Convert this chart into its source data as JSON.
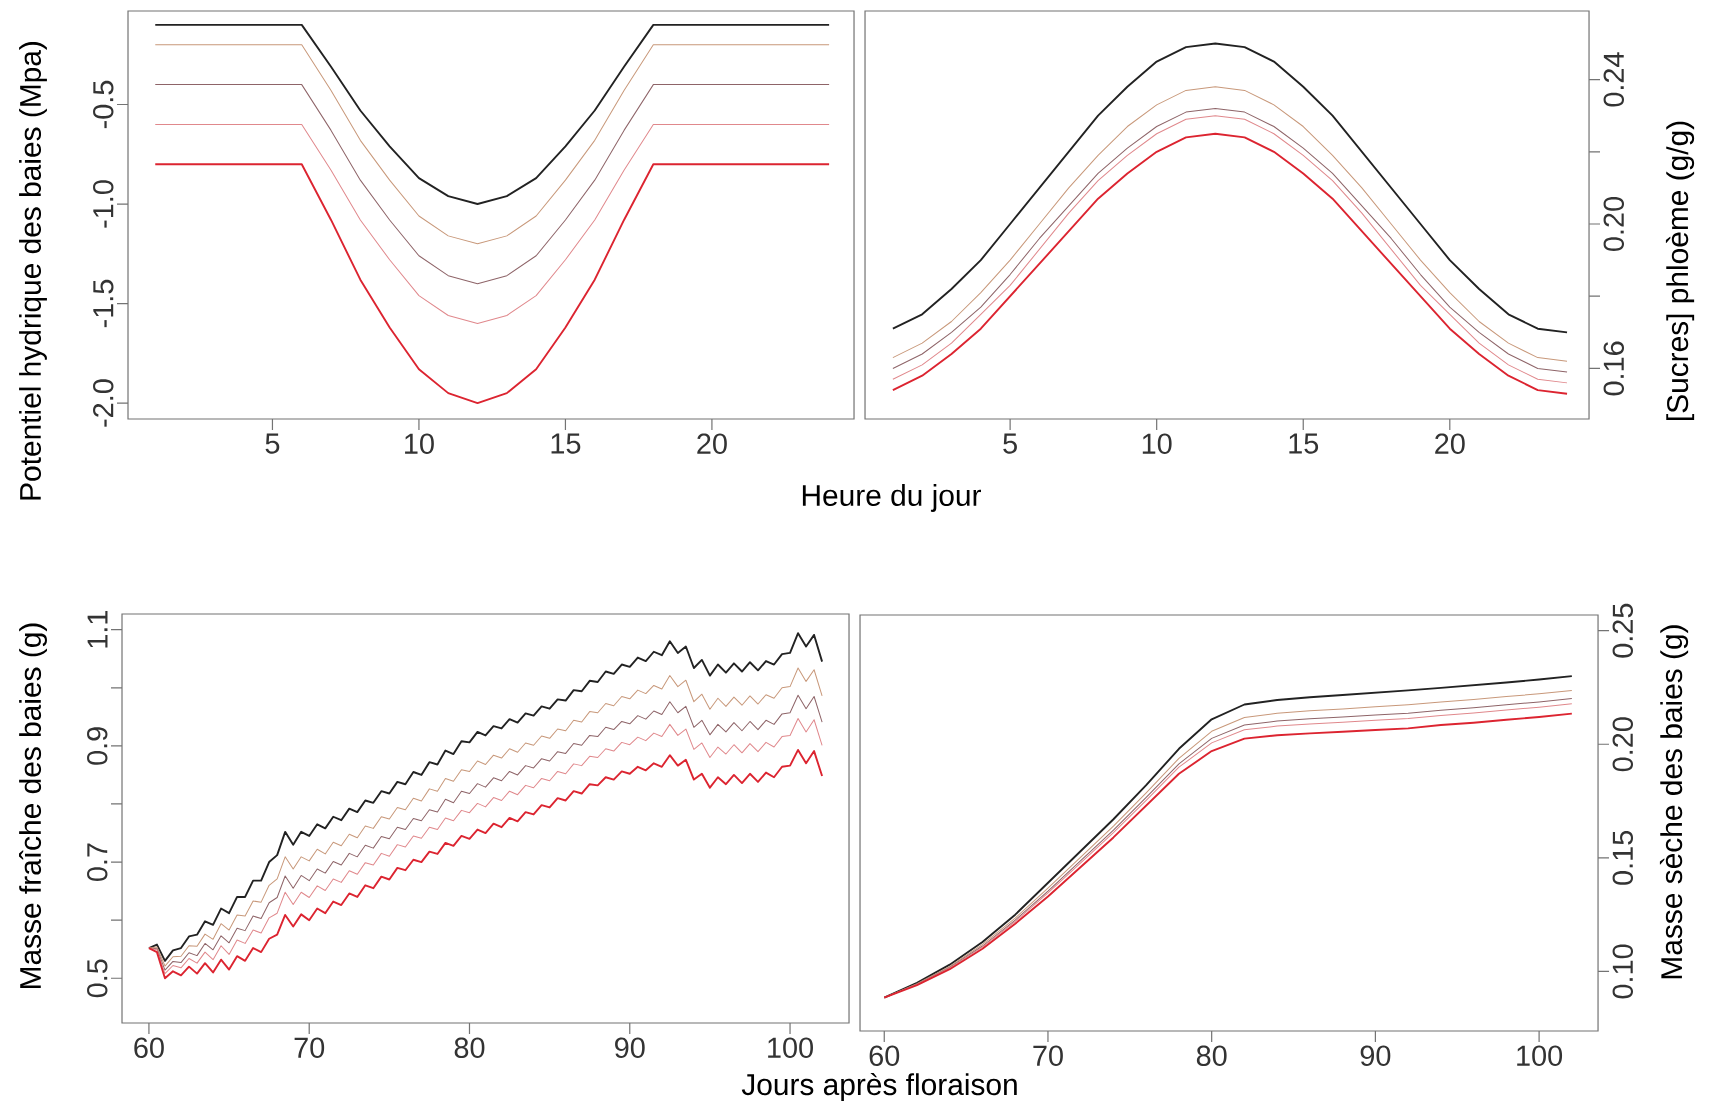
{
  "chart_data": [
    {
      "type": "line",
      "xlabel": "Heure du jour",
      "ylabel": "Potentiel hydrique des baies (Mpa)",
      "x": [
        1,
        2,
        3,
        4,
        5,
        6,
        7,
        8,
        9,
        10,
        11,
        12,
        13,
        14,
        15,
        16,
        17,
        18,
        19,
        20,
        21,
        22,
        23,
        24
      ],
      "xlim": [
        0.07,
        24.85
      ],
      "ylim": [
        -2.08,
        -0.03
      ],
      "xticks": [
        5,
        10,
        15,
        20
      ],
      "yticks": [
        {
          "value": -2,
          "label": "-2.0"
        },
        -1.5,
        {
          "value": -1,
          "label": "-1.0"
        },
        -0.5
      ],
      "series": [
        {
          "color": "#222222",
          "values": [
            -0.1,
            -0.1,
            -0.1,
            -0.1,
            -0.1,
            -0.1,
            -0.31,
            -0.53,
            -0.71,
            -0.87,
            -0.96,
            -1.0,
            -0.96,
            -0.87,
            -0.71,
            -0.53,
            -0.31,
            -0.1,
            -0.1,
            -0.1,
            -0.1,
            -0.1,
            -0.1,
            -0.1
          ]
        },
        {
          "color": "#c8987a",
          "values": [
            -0.2,
            -0.2,
            -0.2,
            -0.2,
            -0.2,
            -0.2,
            -0.43,
            -0.68,
            -0.88,
            -1.06,
            -1.16,
            -1.2,
            -1.16,
            -1.06,
            -0.88,
            -0.68,
            -0.43,
            -0.2,
            -0.2,
            -0.2,
            -0.2,
            -0.2,
            -0.2,
            -0.2
          ]
        },
        {
          "color": "#8e6468",
          "values": [
            -0.4,
            -0.4,
            -0.4,
            -0.4,
            -0.4,
            -0.4,
            -0.63,
            -0.88,
            -1.08,
            -1.26,
            -1.36,
            -1.4,
            -1.36,
            -1.26,
            -1.08,
            -0.88,
            -0.63,
            -0.4,
            -0.4,
            -0.4,
            -0.4,
            -0.4,
            -0.4,
            -0.4
          ]
        },
        {
          "color": "#e0888c",
          "values": [
            -0.6,
            -0.6,
            -0.6,
            -0.6,
            -0.6,
            -0.6,
            -0.83,
            -1.08,
            -1.28,
            -1.46,
            -1.56,
            -1.6,
            -1.56,
            -1.46,
            -1.28,
            -1.08,
            -0.83,
            -0.6,
            -0.6,
            -0.6,
            -0.6,
            -0.6,
            -0.6,
            -0.6
          ]
        },
        {
          "color": "#dc2430",
          "values": [
            -0.8,
            -0.8,
            -0.8,
            -0.8,
            -0.8,
            -0.8,
            -1.08,
            -1.38,
            -1.62,
            -1.83,
            -1.95,
            -2.0,
            -1.95,
            -1.83,
            -1.62,
            -1.38,
            -1.08,
            -0.8,
            -0.8,
            -0.8,
            -0.8,
            -0.8,
            -0.8,
            -0.8
          ]
        }
      ]
    },
    {
      "type": "line",
      "ylabel": "[Sucres] phloème (g/g)",
      "x": [
        1,
        2,
        3,
        4,
        5,
        6,
        7,
        8,
        9,
        10,
        11,
        12,
        13,
        14,
        15,
        16,
        17,
        18,
        19,
        20,
        21,
        22,
        23,
        24
      ],
      "xlim": [
        0.05,
        24.75
      ],
      "ylim": [
        0.146,
        0.259
      ],
      "xticks": [
        5,
        10,
        15,
        20
      ],
      "yticks": [
        0.16,
        {
          "value": 0.18,
          "label": null
        },
        {
          "value": 0.2,
          "label": "0.20"
        },
        {
          "value": 0.22,
          "label": null
        },
        0.24
      ],
      "series": [
        {
          "color": "#222222",
          "values": [
            0.171,
            0.175,
            0.182,
            0.19,
            0.2,
            0.21,
            0.22,
            0.23,
            0.238,
            0.245,
            0.249,
            0.25,
            0.249,
            0.245,
            0.238,
            0.23,
            0.22,
            0.21,
            0.2,
            0.19,
            0.182,
            0.175,
            0.171,
            0.17
          ]
        },
        {
          "color": "#c8987a",
          "values": [
            0.163,
            0.167,
            0.173,
            0.181,
            0.19,
            0.2,
            0.21,
            0.219,
            0.227,
            0.233,
            0.237,
            0.238,
            0.237,
            0.233,
            0.227,
            0.219,
            0.21,
            0.2,
            0.19,
            0.181,
            0.173,
            0.167,
            0.163,
            0.162
          ]
        },
        {
          "color": "#8e6468",
          "values": [
            0.16,
            0.164,
            0.17,
            0.177,
            0.186,
            0.196,
            0.205,
            0.214,
            0.221,
            0.227,
            0.231,
            0.232,
            0.231,
            0.227,
            0.221,
            0.214,
            0.205,
            0.196,
            0.186,
            0.177,
            0.17,
            0.164,
            0.16,
            0.159
          ]
        },
        {
          "color": "#e0888c",
          "values": [
            0.157,
            0.161,
            0.167,
            0.175,
            0.183,
            0.193,
            0.203,
            0.212,
            0.219,
            0.225,
            0.229,
            0.23,
            0.229,
            0.225,
            0.219,
            0.212,
            0.203,
            0.193,
            0.183,
            0.175,
            0.167,
            0.161,
            0.157,
            0.156
          ]
        },
        {
          "color": "#dc2430",
          "values": [
            0.154,
            0.158,
            0.164,
            0.171,
            0.18,
            0.189,
            0.198,
            0.207,
            0.214,
            0.22,
            0.224,
            0.225,
            0.224,
            0.22,
            0.214,
            0.207,
            0.198,
            0.189,
            0.18,
            0.171,
            0.164,
            0.158,
            0.154,
            0.153
          ]
        }
      ]
    },
    {
      "type": "line",
      "xlabel": "Jours après floraison",
      "ylabel": "Masse fraîche des baies (g)",
      "x": [
        60,
        60.5,
        61,
        61.5,
        62,
        62.5,
        63,
        63.5,
        64,
        64.5,
        65,
        65.5,
        66,
        66.5,
        67,
        67.5,
        68,
        68.5,
        69,
        69.5,
        70,
        70.5,
        71,
        71.5,
        72,
        72.5,
        73,
        73.5,
        74,
        74.5,
        75,
        75.5,
        76,
        76.5,
        77,
        77.5,
        78,
        78.5,
        79,
        79.5,
        80,
        80.5,
        81,
        81.5,
        82,
        82.5,
        83,
        83.5,
        84,
        84.5,
        85,
        85.5,
        86,
        86.5,
        87,
        87.5,
        88,
        88.5,
        89,
        89.5,
        90,
        90.5,
        91,
        91.5,
        92,
        92.5,
        93,
        93.5,
        94,
        94.5,
        95,
        95.5,
        96,
        96.5,
        97,
        97.5,
        98,
        98.5,
        99,
        99.5,
        100,
        100.5,
        101,
        101.5,
        102
      ],
      "xlim": [
        58.32,
        103.68
      ],
      "ylim": [
        0.423,
        1.127
      ],
      "xticks": [
        60,
        70,
        80,
        90,
        100
      ],
      "yticks": [
        0.5,
        {
          "value": 0.6,
          "label": null
        },
        0.7,
        {
          "value": 0.8,
          "label": null
        },
        0.9,
        {
          "value": 1.0,
          "label": null
        },
        1.1
      ],
      "series": [
        {
          "color": "#222222",
          "values": [
            0.552,
            0.558,
            0.53,
            0.548,
            0.552,
            0.572,
            0.575,
            0.598,
            0.592,
            0.62,
            0.612,
            0.64,
            0.64,
            0.668,
            0.668,
            0.7,
            0.712,
            0.752,
            0.73,
            0.752,
            0.745,
            0.765,
            0.758,
            0.778,
            0.772,
            0.792,
            0.786,
            0.806,
            0.802,
            0.822,
            0.818,
            0.838,
            0.834,
            0.855,
            0.85,
            0.872,
            0.868,
            0.892,
            0.886,
            0.908,
            0.906,
            0.924,
            0.918,
            0.934,
            0.93,
            0.946,
            0.94,
            0.956,
            0.952,
            0.968,
            0.964,
            0.98,
            0.978,
            0.996,
            0.994,
            1.012,
            1.01,
            1.028,
            1.024,
            1.04,
            1.036,
            1.052,
            1.046,
            1.062,
            1.056,
            1.08,
            1.06,
            1.071,
            1.034,
            1.048,
            1.021,
            1.04,
            1.026,
            1.042,
            1.028,
            1.044,
            1.03,
            1.046,
            1.04,
            1.058,
            1.06,
            1.094,
            1.071,
            1.091,
            1.045
          ]
        },
        {
          "color": "#c8987a",
          "values": [
            0.552,
            0.554,
            0.521,
            0.537,
            0.538,
            0.556,
            0.555,
            0.576,
            0.567,
            0.594,
            0.583,
            0.609,
            0.607,
            0.633,
            0.631,
            0.66,
            0.671,
            0.709,
            0.688,
            0.709,
            0.702,
            0.722,
            0.714,
            0.734,
            0.728,
            0.748,
            0.742,
            0.762,
            0.758,
            0.778,
            0.774,
            0.794,
            0.79,
            0.81,
            0.805,
            0.826,
            0.822,
            0.844,
            0.839,
            0.859,
            0.856,
            0.874,
            0.868,
            0.884,
            0.879,
            0.895,
            0.889,
            0.905,
            0.901,
            0.917,
            0.913,
            0.929,
            0.926,
            0.944,
            0.941,
            0.959,
            0.957,
            0.973,
            0.969,
            0.985,
            0.981,
            0.996,
            0.99,
            1.004,
            0.998,
            1.021,
            1.002,
            1.013,
            0.976,
            0.989,
            0.963,
            0.982,
            0.968,
            0.984,
            0.97,
            0.986,
            0.972,
            0.988,
            0.982,
            1.0,
            1.002,
            1.034,
            1.011,
            1.031,
            0.986
          ]
        },
        {
          "color": "#8e6468",
          "values": [
            0.552,
            0.551,
            0.514,
            0.529,
            0.527,
            0.544,
            0.539,
            0.56,
            0.549,
            0.573,
            0.561,
            0.586,
            0.582,
            0.607,
            0.603,
            0.63,
            0.639,
            0.676,
            0.655,
            0.677,
            0.668,
            0.688,
            0.681,
            0.701,
            0.695,
            0.715,
            0.709,
            0.729,
            0.724,
            0.744,
            0.74,
            0.76,
            0.756,
            0.775,
            0.771,
            0.79,
            0.786,
            0.808,
            0.802,
            0.822,
            0.818,
            0.835,
            0.829,
            0.845,
            0.84,
            0.856,
            0.85,
            0.866,
            0.862,
            0.878,
            0.874,
            0.89,
            0.887,
            0.904,
            0.901,
            0.918,
            0.916,
            0.932,
            0.928,
            0.942,
            0.938,
            0.952,
            0.946,
            0.96,
            0.954,
            0.976,
            0.957,
            0.968,
            0.932,
            0.944,
            0.919,
            0.937,
            0.924,
            0.94,
            0.926,
            0.942,
            0.928,
            0.944,
            0.937,
            0.955,
            0.957,
            0.987,
            0.964,
            0.985,
            0.941
          ]
        },
        {
          "color": "#e0888c",
          "values": [
            0.552,
            0.549,
            0.508,
            0.522,
            0.518,
            0.534,
            0.526,
            0.545,
            0.532,
            0.556,
            0.541,
            0.566,
            0.56,
            0.583,
            0.578,
            0.604,
            0.612,
            0.648,
            0.627,
            0.648,
            0.639,
            0.659,
            0.651,
            0.671,
            0.665,
            0.685,
            0.679,
            0.699,
            0.695,
            0.715,
            0.71,
            0.73,
            0.726,
            0.745,
            0.741,
            0.76,
            0.756,
            0.776,
            0.771,
            0.789,
            0.785,
            0.801,
            0.795,
            0.811,
            0.806,
            0.822,
            0.816,
            0.832,
            0.828,
            0.844,
            0.84,
            0.856,
            0.852,
            0.869,
            0.866,
            0.882,
            0.88,
            0.895,
            0.891,
            0.906,
            0.902,
            0.915,
            0.909,
            0.922,
            0.916,
            0.937,
            0.918,
            0.929,
            0.894,
            0.905,
            0.88,
            0.898,
            0.886,
            0.902,
            0.888,
            0.904,
            0.89,
            0.906,
            0.898,
            0.916,
            0.918,
            0.947,
            0.924,
            0.945,
            0.901
          ]
        },
        {
          "color": "#dc2430",
          "values": [
            0.552,
            0.545,
            0.5,
            0.512,
            0.505,
            0.52,
            0.508,
            0.526,
            0.51,
            0.532,
            0.515,
            0.538,
            0.53,
            0.552,
            0.545,
            0.568,
            0.575,
            0.609,
            0.589,
            0.61,
            0.6,
            0.62,
            0.612,
            0.632,
            0.626,
            0.646,
            0.64,
            0.66,
            0.655,
            0.675,
            0.67,
            0.69,
            0.686,
            0.704,
            0.7,
            0.718,
            0.714,
            0.733,
            0.728,
            0.745,
            0.74,
            0.756,
            0.75,
            0.766,
            0.76,
            0.776,
            0.77,
            0.786,
            0.782,
            0.798,
            0.794,
            0.81,
            0.806,
            0.822,
            0.818,
            0.834,
            0.832,
            0.846,
            0.842,
            0.856,
            0.852,
            0.864,
            0.858,
            0.87,
            0.864,
            0.884,
            0.866,
            0.876,
            0.842,
            0.852,
            0.828,
            0.846,
            0.834,
            0.85,
            0.836,
            0.852,
            0.838,
            0.854,
            0.846,
            0.864,
            0.866,
            0.893,
            0.87,
            0.891,
            0.848
          ]
        }
      ]
    },
    {
      "type": "line",
      "ylabel": "Masse sèche des baies (g)",
      "x": [
        60,
        62,
        64,
        66,
        68,
        70,
        72,
        74,
        76,
        78,
        80,
        82,
        84,
        86,
        88,
        90,
        92,
        94,
        96,
        98,
        100,
        102
      ],
      "xlim": [
        58.52,
        103.6
      ],
      "ylim": [
        0.0738,
        0.2569
      ],
      "xticks": [
        60,
        70,
        80,
        90,
        100
      ],
      "yticks": [
        {
          "value": 0.1,
          "label": "0.10"
        },
        0.15,
        {
          "value": 0.2,
          "label": "0.20"
        },
        0.25
      ],
      "series": [
        {
          "color": "#222222",
          "values": [
            0.0885,
            0.095,
            0.103,
            0.113,
            0.125,
            0.139,
            0.153,
            0.167,
            0.182,
            0.198,
            0.211,
            0.2175,
            0.2195,
            0.2207,
            0.2217,
            0.2227,
            0.2237,
            0.2248,
            0.226,
            0.2272,
            0.2285,
            0.23
          ]
        },
        {
          "color": "#c8987a",
          "values": [
            0.0885,
            0.0946,
            0.1022,
            0.1119,
            0.1235,
            0.1367,
            0.1503,
            0.164,
            0.1786,
            0.1938,
            0.2057,
            0.2118,
            0.2136,
            0.2147,
            0.2155,
            0.2165,
            0.2174,
            0.2186,
            0.2197,
            0.221,
            0.2222,
            0.2237
          ]
        },
        {
          "color": "#8e6468",
          "values": [
            0.0885,
            0.0944,
            0.1018,
            0.1112,
            0.1226,
            0.1354,
            0.1488,
            0.1622,
            0.1766,
            0.1914,
            0.2026,
            0.2085,
            0.2102,
            0.2112,
            0.212,
            0.2129,
            0.2137,
            0.215,
            0.2161,
            0.2174,
            0.2186,
            0.2201
          ]
        },
        {
          "color": "#e0888c",
          "values": [
            0.0885,
            0.0943,
            0.1015,
            0.1108,
            0.122,
            0.1346,
            0.1478,
            0.1611,
            0.1753,
            0.1899,
            0.2006,
            0.2064,
            0.208,
            0.2089,
            0.2097,
            0.2106,
            0.2113,
            0.2127,
            0.2138,
            0.2151,
            0.2163,
            0.2178
          ]
        },
        {
          "color": "#dc2430",
          "values": [
            0.0885,
            0.094,
            0.101,
            0.11,
            0.121,
            0.133,
            0.146,
            0.159,
            0.173,
            0.187,
            0.197,
            0.2025,
            0.204,
            0.2048,
            0.2055,
            0.2063,
            0.207,
            0.2085,
            0.2095,
            0.2108,
            0.212,
            0.2135
          ]
        }
      ]
    }
  ]
}
